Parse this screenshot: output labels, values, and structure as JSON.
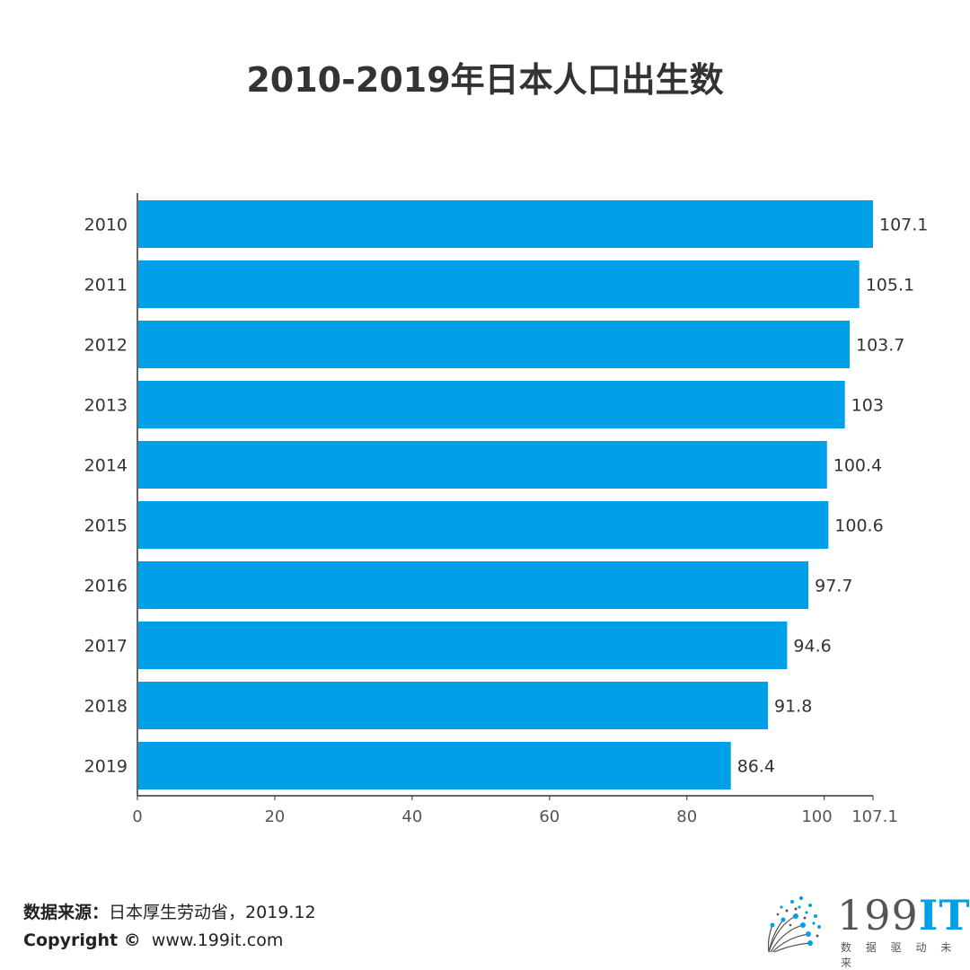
{
  "colors": {
    "bar": "#00a0e9",
    "axis": "#333333",
    "text": "#333333"
  },
  "footer": {
    "source_label": "数据来源：",
    "source_text": "日本厚生劳动省，2019.12",
    "copyright_label": "Copyright ©",
    "copyright_text": "www.199it.com"
  },
  "logo": {
    "name": "199",
    "suffix": "IT",
    "tagline": "数 据 驱 动 未 来"
  },
  "chart_data": {
    "type": "bar",
    "orientation": "horizontal",
    "title": "2010-2019年日本人口出生数",
    "categories": [
      "2010",
      "2011",
      "2012",
      "2013",
      "2014",
      "2015",
      "2016",
      "2017",
      "2018",
      "2019"
    ],
    "values": [
      107.1,
      105.1,
      103.7,
      103,
      100.4,
      100.6,
      97.7,
      94.6,
      91.8,
      86.4
    ],
    "value_labels": [
      "107.1",
      "105.1",
      "103.7",
      "103",
      "100.4",
      "100.6",
      "97.7",
      "94.6",
      "91.8",
      "86.4"
    ],
    "xlim": [
      0,
      107.1
    ],
    "xticks": [
      0,
      20,
      40,
      60,
      80,
      100,
      107.1
    ],
    "xtick_labels": [
      "0",
      "20",
      "40",
      "60",
      "80",
      "100",
      "107.1"
    ],
    "xlabel": "",
    "ylabel": "",
    "grid": false
  }
}
